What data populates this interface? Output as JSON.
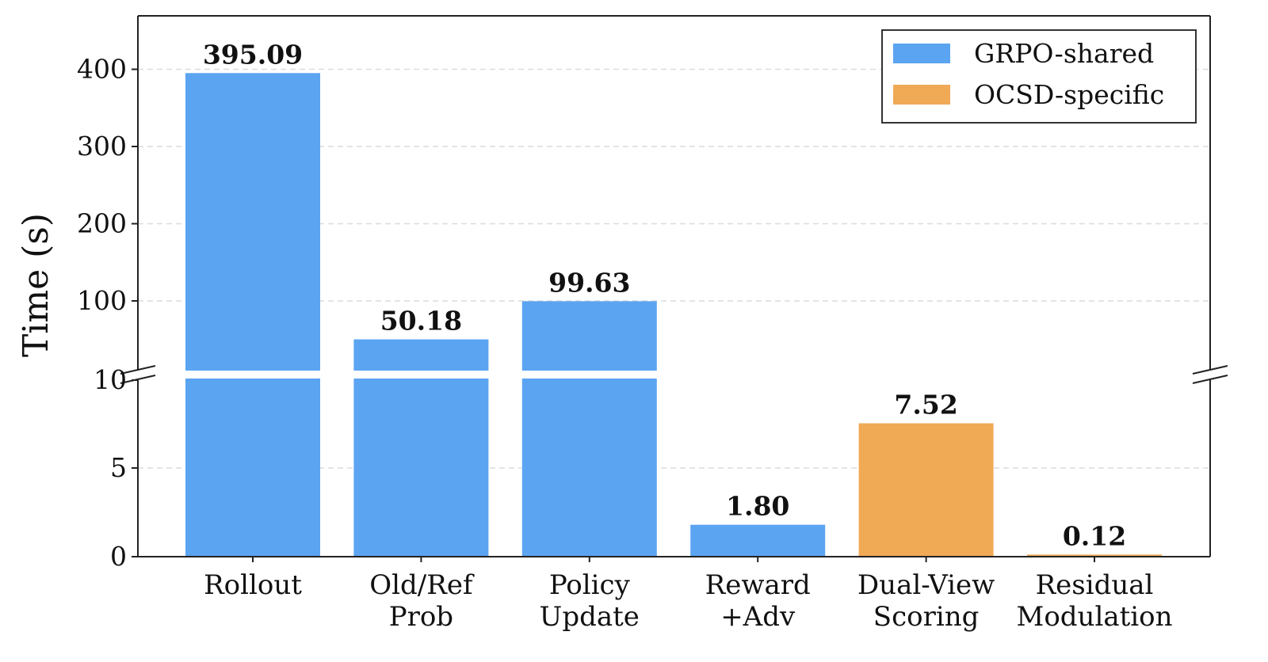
{
  "chart_data": {
    "type": "bar",
    "ylabel": "Time (s)",
    "broken_axis": true,
    "upper_ylim": [
      10,
      470
    ],
    "lower_ylim": [
      0,
      10
    ],
    "upper_ticks": [
      100,
      200,
      300,
      400
    ],
    "lower_ticks": [
      0,
      5,
      10
    ],
    "grid": "y-dashed",
    "legend_position": "top-right",
    "categories": [
      [
        "Rollout"
      ],
      [
        "Old/Ref",
        "Prob"
      ],
      [
        "Policy",
        "Update"
      ],
      [
        "Reward",
        "+Adv"
      ],
      [
        "Dual-View",
        "Scoring"
      ],
      [
        "Residual",
        "Modulation"
      ]
    ],
    "values": [
      395.09,
      50.18,
      99.63,
      1.8,
      7.52,
      0.12
    ],
    "value_labels": [
      "395.09",
      "50.18",
      "99.63",
      "1.80",
      "7.52",
      "0.12"
    ],
    "groups": [
      "GRPO-shared",
      "GRPO-shared",
      "GRPO-shared",
      "GRPO-shared",
      "OCSD-specific",
      "OCSD-specific"
    ],
    "series": [
      {
        "name": "GRPO-shared",
        "color": "#5ba4f1"
      },
      {
        "name": "OCSD-specific",
        "color": "#f0a955"
      }
    ]
  }
}
